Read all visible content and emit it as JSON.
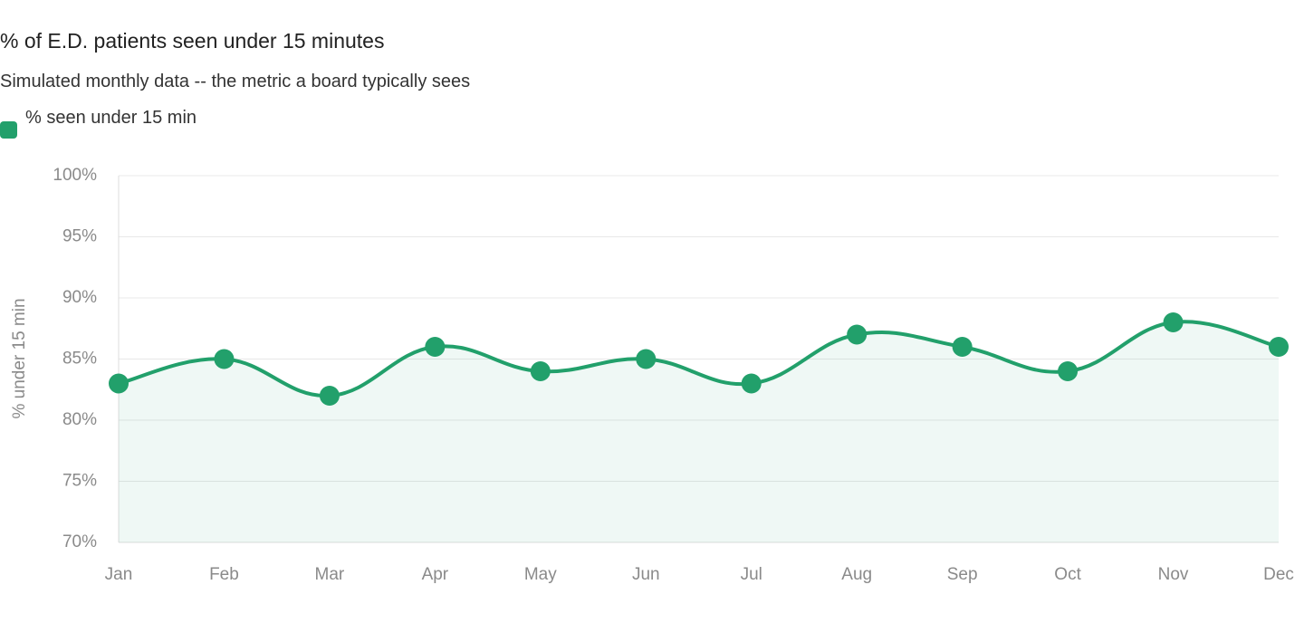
{
  "chart_data": {
    "type": "line",
    "title": "% of E.D. patients seen under 15 minutes",
    "subtitle": "Simulated monthly data -- the metric a board typically sees",
    "y_label": "% under 15 min",
    "categories": [
      "Jan",
      "Feb",
      "Mar",
      "Apr",
      "May",
      "Jun",
      "Jul",
      "Aug",
      "Sep",
      "Oct",
      "Nov",
      "Dec"
    ],
    "series": [
      {
        "name": "% seen under 15 min",
        "color": "#22a06b",
        "values": [
          83,
          85,
          82,
          86,
          84,
          85,
          83,
          87,
          86,
          84,
          88,
          86
        ]
      }
    ],
    "fill": true,
    "ylim": [
      70,
      100
    ],
    "yticks": [
      {
        "value": 70,
        "label": "70%"
      },
      {
        "value": 75,
        "label": "75%"
      },
      {
        "value": 80,
        "label": "80%"
      },
      {
        "value": 85,
        "label": "85%"
      },
      {
        "value": 90,
        "label": "90%"
      },
      {
        "value": 95,
        "label": "95%"
      },
      {
        "value": 100,
        "label": "100%"
      }
    ],
    "grid": true,
    "legend": "top-left"
  }
}
